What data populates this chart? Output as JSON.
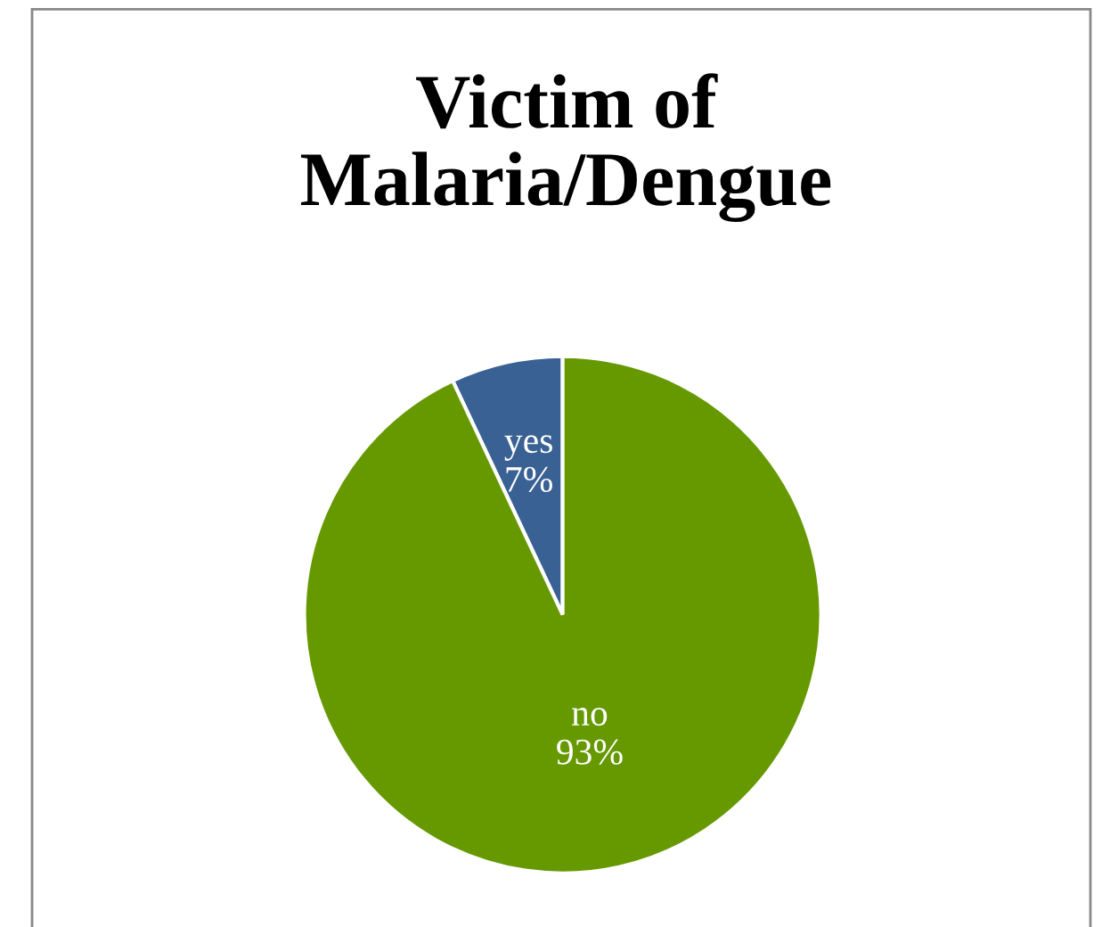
{
  "chart_data": {
    "type": "pie",
    "title": "Victim of\nMalaria/Dengue",
    "categories": [
      "yes",
      "no"
    ],
    "values": [
      7,
      93
    ],
    "value_labels": [
      "7%",
      "93%"
    ],
    "colors": [
      "#3a6194",
      "#669900"
    ],
    "legend": false
  }
}
